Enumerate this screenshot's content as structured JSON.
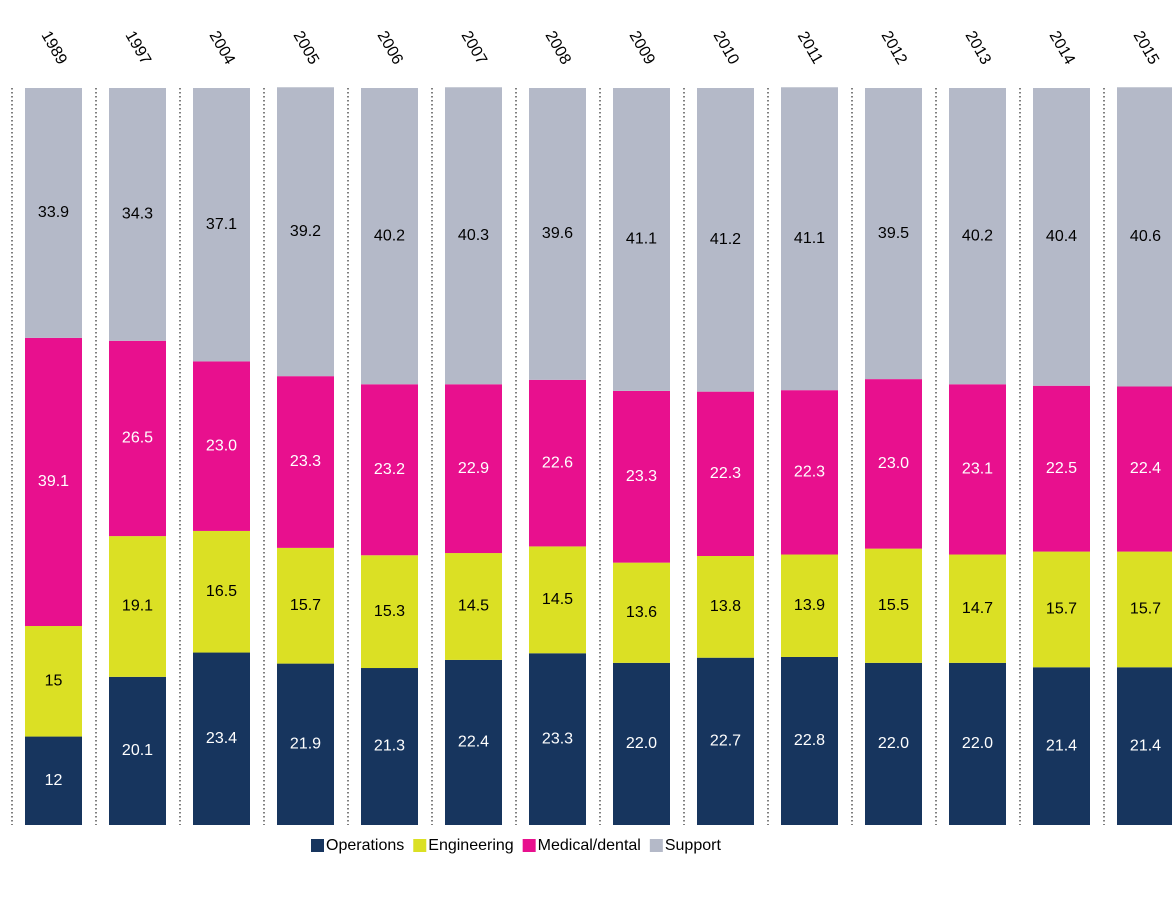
{
  "chart_data": {
    "type": "stacked_bar",
    "categories": [
      "1989",
      "1997",
      "2004",
      "2005",
      "2006",
      "2007",
      "2008",
      "2009",
      "2010",
      "2011",
      "2012",
      "2013",
      "2014",
      "2015"
    ],
    "ylim": [
      0,
      100
    ],
    "series": [
      {
        "name": "Operations",
        "color": "#17355e",
        "values": [
          12,
          20.1,
          23.4,
          21.9,
          21.3,
          22.4,
          23.3,
          22.0,
          22.7,
          22.8,
          22.0,
          22.0,
          21.4,
          21.4
        ],
        "value_labels": [
          "12",
          "20.1",
          "23.4",
          "21.9",
          "21.3",
          "22.4",
          "23.3",
          "22.0",
          "22.7",
          "22.8",
          "22.0",
          "22.0",
          "21.4",
          "21.4"
        ]
      },
      {
        "name": "Engineering",
        "color": "#dbe024",
        "values": [
          15,
          19.1,
          16.5,
          15.7,
          15.3,
          14.5,
          14.5,
          13.6,
          13.8,
          13.9,
          15.5,
          14.7,
          15.7,
          15.7
        ],
        "value_labels": [
          "15",
          "19.1",
          "16.5",
          "15.7",
          "15.3",
          "14.5",
          "14.5",
          "13.6",
          "13.8",
          "13.9",
          "15.5",
          "14.7",
          "15.7",
          "15.7"
        ]
      },
      {
        "name": "Medical/dental",
        "color": "#e8108e",
        "values": [
          39.1,
          26.5,
          23.0,
          23.3,
          23.2,
          22.9,
          22.6,
          23.3,
          22.3,
          22.3,
          23.0,
          23.1,
          22.5,
          22.4
        ],
        "value_labels": [
          "39.1",
          "26.5",
          "23.0",
          "23.3",
          "23.2",
          "22.9",
          "22.6",
          "23.3",
          "22.3",
          "22.3",
          "23.0",
          "23.1",
          "22.5",
          "22.4"
        ]
      },
      {
        "name": "Support",
        "color": "#b4b9c8",
        "values": [
          33.9,
          34.3,
          37.1,
          39.2,
          40.2,
          40.3,
          39.6,
          41.1,
          41.2,
          41.1,
          39.5,
          40.2,
          40.4,
          40.6
        ],
        "value_labels": [
          "33.9",
          "34.3",
          "37.1",
          "39.2",
          "40.2",
          "40.3",
          "39.6",
          "41.1",
          "41.2",
          "41.1",
          "39.5",
          "40.2",
          "40.4",
          "40.6"
        ]
      }
    ]
  }
}
